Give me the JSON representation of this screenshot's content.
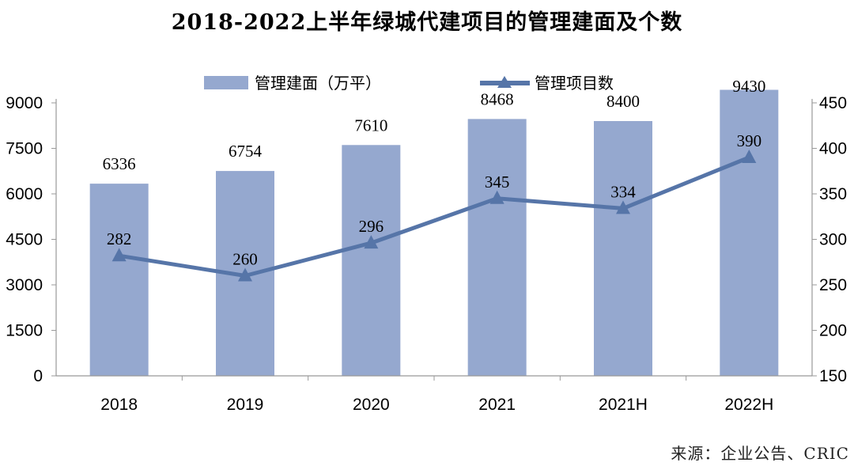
{
  "chart_data": {
    "type": "bar",
    "title": "2018-2022上半年绿城代建项目的管理建面及个数",
    "categories": [
      "2018",
      "2019",
      "2020",
      "2021",
      "2021H",
      "2022H"
    ],
    "series": [
      {
        "name": "管理建面（万平）",
        "type": "bar",
        "axis": "left",
        "values": [
          6336,
          6754,
          7610,
          8468,
          8400,
          9430
        ],
        "color": "#95a8cf"
      },
      {
        "name": "管理项目数",
        "type": "line",
        "axis": "right",
        "marker": "triangle",
        "values": [
          282,
          260,
          296,
          345,
          334,
          390
        ],
        "color": "#5675a8"
      }
    ],
    "y_left": {
      "ylim": [
        0,
        9000
      ],
      "ticks": [
        "0",
        "1500",
        "3000",
        "4500",
        "6000",
        "7500",
        "9000"
      ]
    },
    "y_right": {
      "ylim": [
        150,
        450
      ],
      "ticks": [
        "150",
        "200",
        "250",
        "300",
        "350",
        "400",
        "450"
      ]
    },
    "legend_position": "top-center",
    "grid": false
  },
  "source": "来源：企业公告、CRIC"
}
